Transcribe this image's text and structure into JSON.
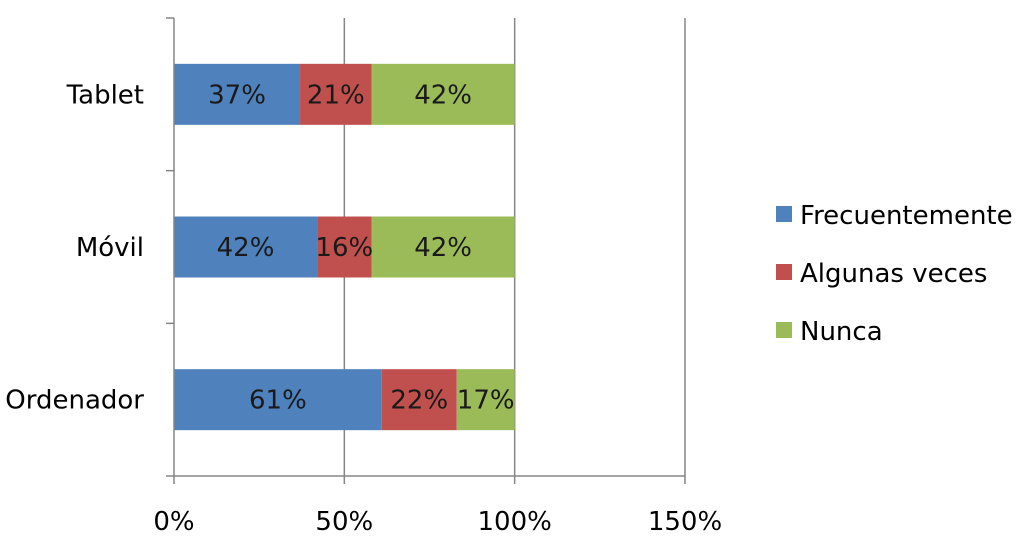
{
  "chart_data": {
    "type": "bar",
    "orientation": "horizontal",
    "stacked": true,
    "categories": [
      "Tablet",
      "Móvil",
      "Ordenador"
    ],
    "series": [
      {
        "name": "Frecuentemente",
        "color": "#4f81bd",
        "values": [
          37,
          42,
          61
        ],
        "labels": [
          "37%",
          "42%",
          "61%"
        ]
      },
      {
        "name": "Algunas veces",
        "color": "#c0504d",
        "values": [
          21,
          16,
          22
        ],
        "labels": [
          "21%",
          "16%",
          "22%"
        ]
      },
      {
        "name": "Nunca",
        "color": "#9bbb59",
        "values": [
          42,
          42,
          17
        ],
        "labels": [
          "42%",
          "42%",
          "17%"
        ]
      }
    ],
    "xlim": [
      0,
      150
    ],
    "xticks": [
      0,
      50,
      100,
      150
    ],
    "xtick_labels": [
      "0%",
      "50%",
      "100%",
      "150%"
    ],
    "grid": "vertical",
    "legend_position": "right",
    "title": "",
    "xlabel": "",
    "ylabel": ""
  }
}
